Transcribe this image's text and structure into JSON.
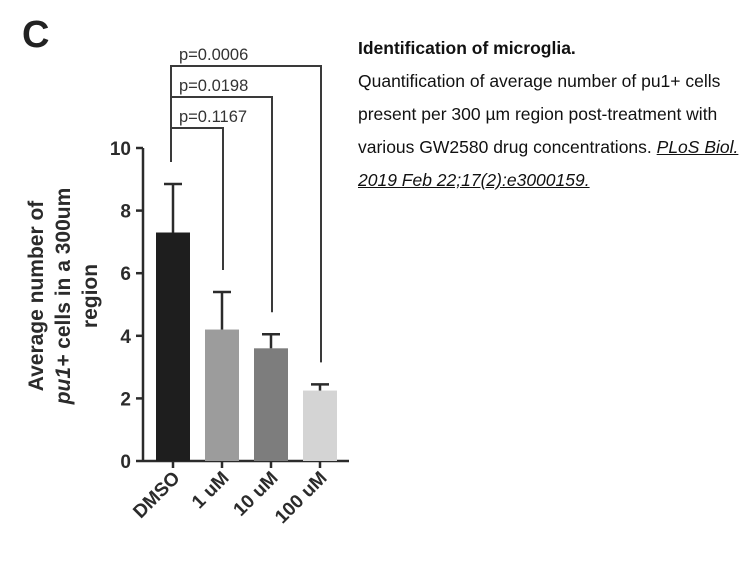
{
  "panel_letter": "C",
  "caption": {
    "title": "Identification of microglia.",
    "body": "Quantification of average number of pu1+ cells present per 300 µm region post-treatment with various GW2580 drug concentrations.",
    "citation": "PLoS Biol. 2019 Feb 22;17(2):e3000159."
  },
  "chart_data": {
    "type": "bar",
    "categories": [
      "DMSO",
      "1 uM",
      "10 uM",
      "100 uM"
    ],
    "values": [
      7.3,
      4.2,
      3.6,
      2.25
    ],
    "errors": [
      1.55,
      1.2,
      0.45,
      0.2
    ],
    "bar_colors": [
      "#1e1e1e",
      "#9c9c9c",
      "#7d7d7d",
      "#d4d4d4"
    ],
    "ylabel_lines": [
      "Average number of",
      "pu1+ cells in a 300um",
      "region"
    ],
    "ylim": [
      0,
      10
    ],
    "yticks": [
      0,
      2,
      4,
      6,
      8,
      10
    ],
    "comparisons": [
      {
        "from": "DMSO",
        "to": "1 uM",
        "label": "p=0.1167"
      },
      {
        "from": "DMSO",
        "to": "10 uM",
        "label": "p=0.0198"
      },
      {
        "from": "DMSO",
        "to": "100 uM",
        "label": "p=0.0006"
      }
    ]
  }
}
